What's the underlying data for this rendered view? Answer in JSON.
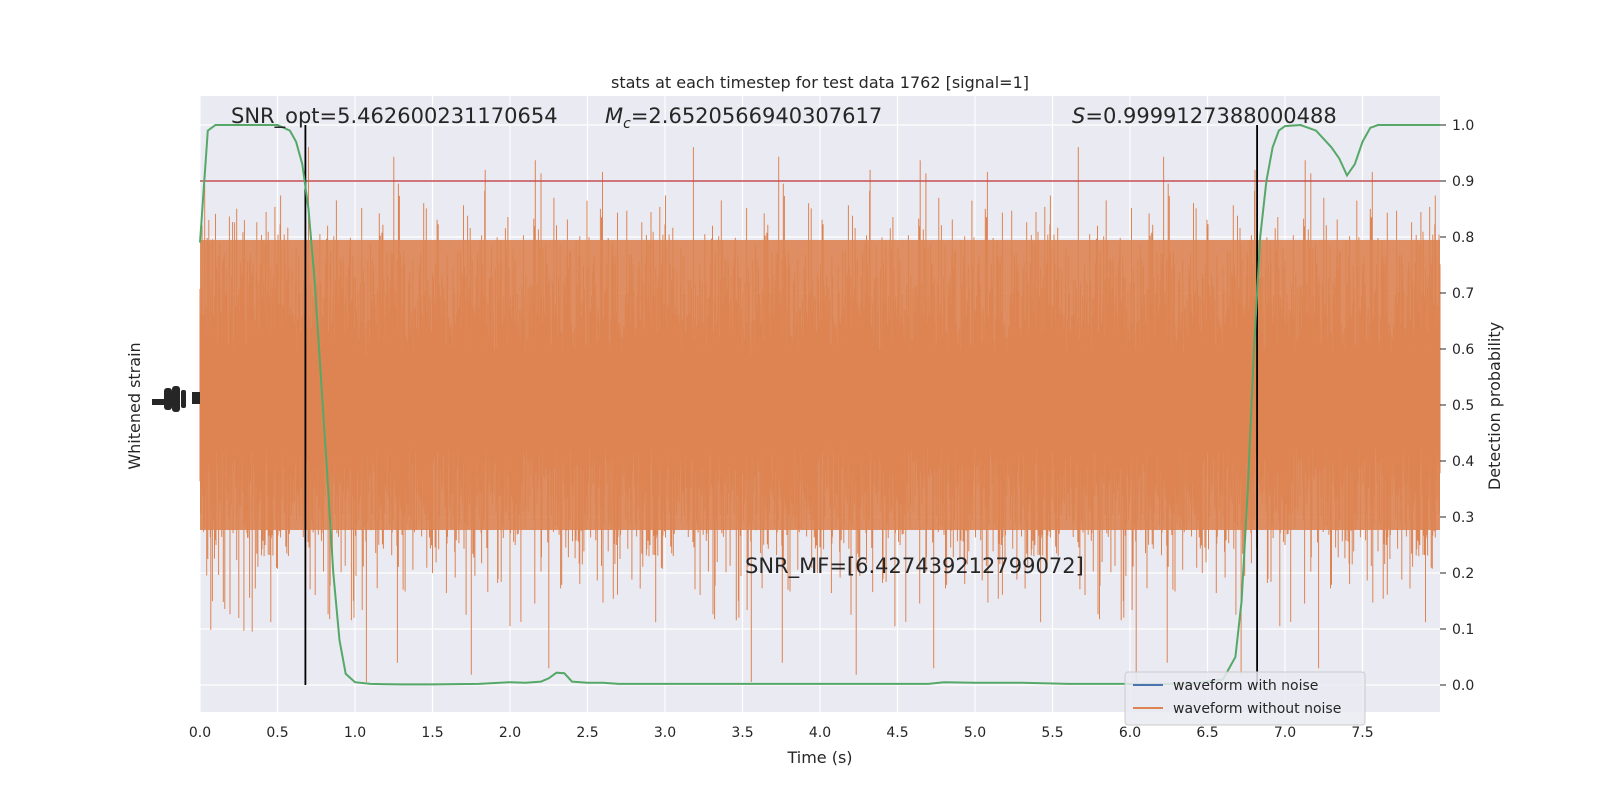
{
  "chart_data": {
    "type": "line",
    "title": "stats at each timestep for test data 1762 [signal=1]",
    "xlabel": "Time (s)",
    "ylabel_left": "Whitened strain",
    "ylabel_right": "Detection probability",
    "xlim": [
      0.0,
      8.0
    ],
    "ylim_right": [
      -0.05,
      1.05
    ],
    "x_ticks": [
      "0.0",
      "0.5",
      "1.0",
      "1.5",
      "2.0",
      "2.5",
      "3.0",
      "3.5",
      "4.0",
      "4.5",
      "5.0",
      "5.5",
      "6.0",
      "6.5",
      "7.0",
      "7.5"
    ],
    "right_ticks": [
      "0.0",
      "0.1",
      "0.2",
      "0.3",
      "0.4",
      "0.5",
      "0.6",
      "0.7",
      "0.8",
      "0.9",
      "1.0"
    ],
    "grid": true,
    "annotations": {
      "snr_opt": "SNR_opt=5.462600231170654",
      "mc_prefix": "M",
      "mc_sub": "c",
      "mc_value": "=2.6520566940307617",
      "s_prefix": "S",
      "s_value": "=0.9999127388000488",
      "snr_mf": "SNR_MF=[6.427439212799072]"
    },
    "threshold": 0.9,
    "vertical_lines_x": [
      0.68,
      6.82
    ],
    "detection_probability": {
      "name": "detection probability",
      "x": [
        0.0,
        0.05,
        0.1,
        0.2,
        0.3,
        0.4,
        0.5,
        0.58,
        0.62,
        0.66,
        0.7,
        0.74,
        0.78,
        0.82,
        0.86,
        0.9,
        0.94,
        1.0,
        1.1,
        1.3,
        1.5,
        1.8,
        2.0,
        2.1,
        2.2,
        2.25,
        2.3,
        2.35,
        2.4,
        2.5,
        2.6,
        2.7,
        2.9,
        3.2,
        3.5,
        4.0,
        4.5,
        4.7,
        4.8,
        5.0,
        5.3,
        5.6,
        6.0,
        6.4,
        6.6,
        6.68,
        6.72,
        6.76,
        6.8,
        6.84,
        6.88,
        6.92,
        6.96,
        7.0,
        7.1,
        7.2,
        7.3,
        7.35,
        7.4,
        7.45,
        7.5,
        7.55,
        7.6,
        7.7,
        8.0
      ],
      "values": [
        0.79,
        0.99,
        1.0,
        1.0,
        1.0,
        1.0,
        1.0,
        0.99,
        0.97,
        0.93,
        0.85,
        0.72,
        0.55,
        0.38,
        0.2,
        0.08,
        0.02,
        0.005,
        0.002,
        0.001,
        0.001,
        0.002,
        0.005,
        0.004,
        0.006,
        0.012,
        0.022,
        0.021,
        0.006,
        0.004,
        0.004,
        0.002,
        0.002,
        0.002,
        0.002,
        0.002,
        0.002,
        0.002,
        0.005,
        0.004,
        0.004,
        0.002,
        0.002,
        0.002,
        0.01,
        0.05,
        0.15,
        0.35,
        0.6,
        0.8,
        0.9,
        0.96,
        0.99,
        0.998,
        1.0,
        0.99,
        0.96,
        0.94,
        0.91,
        0.93,
        0.97,
        0.995,
        1.0,
        1.0,
        1.0
      ]
    },
    "legend": {
      "placement": "lower-right",
      "entries": [
        {
          "label": "waveform with noise",
          "color": "#4c72b0"
        },
        {
          "label": "waveform without noise",
          "color": "#dd8452"
        }
      ]
    },
    "colors": {
      "axes_bg": "#eaeaf2",
      "grid": "#ffffff",
      "strain": "#dd8452",
      "probability": "#55a868",
      "threshold": "#c44e52",
      "vlines": "#000000"
    }
  }
}
